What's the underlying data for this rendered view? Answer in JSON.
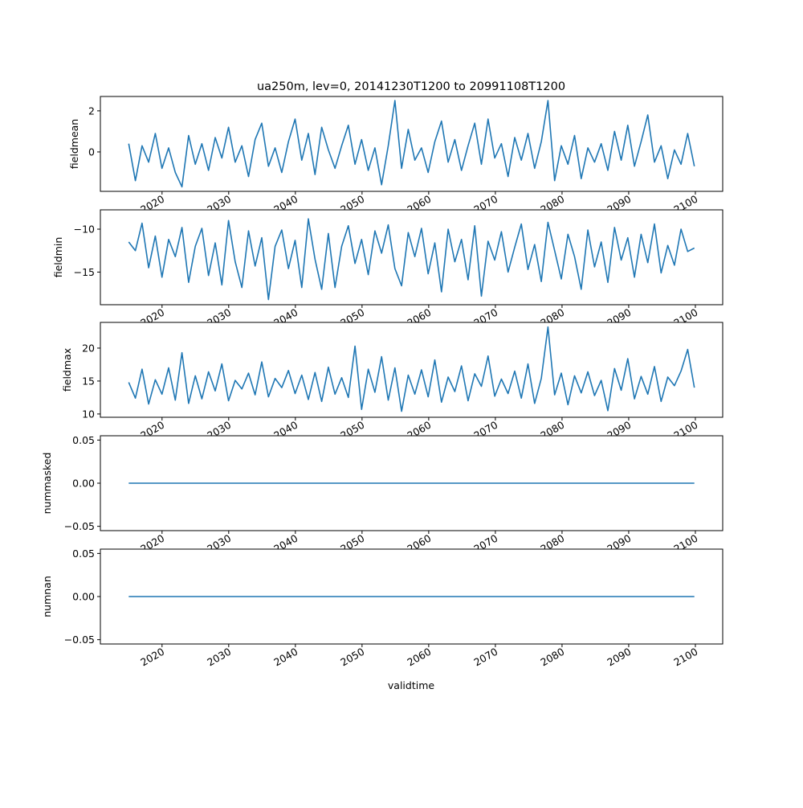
{
  "chart_data": {
    "type": "line",
    "title": "ua250m, lev=0, 20141230T1200 to 20991108T1200",
    "xlabel": "validtime",
    "x_range": [
      2015.0,
      2099.85
    ],
    "xlim": [
      2010.75,
      2104.1
    ],
    "x_ticks": [
      2020,
      2030,
      2040,
      2050,
      2060,
      2070,
      2080,
      2090,
      2100
    ],
    "x_tick_labels": [
      "2020",
      "2030",
      "2040",
      "2050",
      "2060",
      "2070",
      "2080",
      "2090",
      "2100"
    ],
    "line_color": "#1f77b4",
    "grid": false,
    "panels": [
      {
        "ylabel": "fieldmean",
        "ylim": [
          -1.92,
          2.7
        ],
        "y_ticks": [
          0,
          2
        ],
        "y_tick_labels": [
          "0",
          "2"
        ],
        "values": [
          0.4,
          -1.4,
          0.3,
          -0.5,
          0.9,
          -0.8,
          0.2,
          -1.0,
          -1.7,
          0.8,
          -0.6,
          0.4,
          -0.9,
          0.7,
          -0.3,
          1.2,
          -0.5,
          0.3,
          -1.2,
          0.6,
          1.4,
          -0.7,
          0.2,
          -1.0,
          0.5,
          1.6,
          -0.4,
          0.9,
          -1.1,
          1.2,
          0.1,
          -0.8,
          0.3,
          1.3,
          -0.6,
          0.6,
          -0.9,
          0.2,
          -1.6,
          0.3,
          2.5,
          -0.8,
          1.1,
          -0.4,
          0.2,
          -1.0,
          0.5,
          1.5,
          -0.5,
          0.6,
          -0.9,
          0.3,
          1.4,
          -0.6,
          1.6,
          -0.3,
          0.4,
          -1.2,
          0.7,
          -0.4,
          0.9,
          -0.8,
          0.5,
          2.5,
          -1.4,
          0.3,
          -0.6,
          0.8,
          -1.3,
          0.2,
          -0.5,
          0.4,
          -0.9,
          1.0,
          -0.4,
          1.3,
          -0.7,
          0.5,
          1.8,
          -0.5,
          0.3,
          -1.3,
          0.1,
          -0.6,
          0.9,
          -0.7
        ]
      },
      {
        "ylabel": "fieldmin",
        "ylim": [
          -18.8,
          -7.75
        ],
        "y_ticks": [
          -15,
          -10
        ],
        "y_tick_labels": [
          "−15",
          "−10"
        ],
        "values": [
          -11.5,
          -12.5,
          -9.3,
          -14.5,
          -10.8,
          -15.6,
          -11.2,
          -13.2,
          -9.8,
          -16.2,
          -12.0,
          -9.9,
          -15.4,
          -11.6,
          -16.5,
          -9.0,
          -13.8,
          -16.8,
          -10.2,
          -14.3,
          -11.0,
          -18.2,
          -12.0,
          -10.1,
          -14.6,
          -11.3,
          -16.8,
          -8.8,
          -13.5,
          -17.0,
          -10.5,
          -16.8,
          -12.0,
          -9.6,
          -14.0,
          -11.2,
          -15.3,
          -10.2,
          -12.8,
          -9.5,
          -14.6,
          -16.6,
          -10.4,
          -13.2,
          -9.9,
          -15.2,
          -11.6,
          -17.3,
          -10.0,
          -13.8,
          -11.2,
          -15.9,
          -9.6,
          -17.8,
          -11.4,
          -13.6,
          -10.3,
          -15.0,
          -12.1,
          -9.4,
          -14.7,
          -11.8,
          -16.1,
          -9.2,
          -12.5,
          -15.8,
          -10.6,
          -13.2,
          -17.0,
          -10.1,
          -14.4,
          -11.5,
          -16.2,
          -9.8,
          -13.6,
          -11.0,
          -15.6,
          -10.6,
          -13.9,
          -9.4,
          -15.1,
          -11.9,
          -14.2,
          -10.0,
          -12.6,
          -12.2
        ]
      },
      {
        "ylabel": "fieldmax",
        "ylim": [
          9.5,
          23.9
        ],
        "y_ticks": [
          10,
          15,
          20
        ],
        "y_tick_labels": [
          "10",
          "15",
          "20"
        ],
        "values": [
          14.8,
          12.4,
          16.8,
          11.5,
          15.2,
          13.0,
          17.0,
          12.1,
          19.3,
          11.6,
          15.8,
          12.3,
          16.4,
          13.5,
          17.6,
          12.0,
          15.1,
          13.8,
          16.2,
          12.9,
          17.9,
          12.6,
          15.4,
          14.0,
          16.6,
          13.1,
          15.9,
          12.2,
          16.3,
          11.9,
          17.1,
          13.0,
          15.5,
          12.5,
          20.3,
          10.7,
          16.8,
          13.3,
          18.7,
          12.1,
          17.0,
          10.4,
          15.9,
          13.0,
          16.7,
          12.6,
          18.2,
          11.8,
          15.6,
          13.4,
          17.3,
          12.0,
          16.1,
          14.2,
          18.8,
          12.7,
          15.3,
          13.1,
          16.5,
          12.4,
          17.6,
          11.6,
          15.4,
          23.2,
          12.9,
          16.2,
          11.4,
          15.8,
          13.2,
          16.4,
          12.8,
          15.1,
          10.5,
          16.9,
          13.6,
          18.4,
          12.3,
          15.7,
          13.0,
          17.2,
          11.9,
          15.6,
          14.3,
          16.5,
          19.8,
          14.0
        ]
      },
      {
        "ylabel": "nummasked",
        "ylim": [
          -0.055,
          0.055
        ],
        "y_ticks": [
          -0.05,
          0.0,
          0.05
        ],
        "y_tick_labels": [
          "−0.05",
          "0.00",
          "0.05"
        ],
        "values": [
          0,
          0
        ]
      },
      {
        "ylabel": "numnan",
        "ylim": [
          -0.055,
          0.055
        ],
        "y_ticks": [
          -0.05,
          0.0,
          0.05
        ],
        "y_tick_labels": [
          "−0.05",
          "0.00",
          "0.05"
        ],
        "values": [
          0,
          0
        ]
      }
    ]
  }
}
